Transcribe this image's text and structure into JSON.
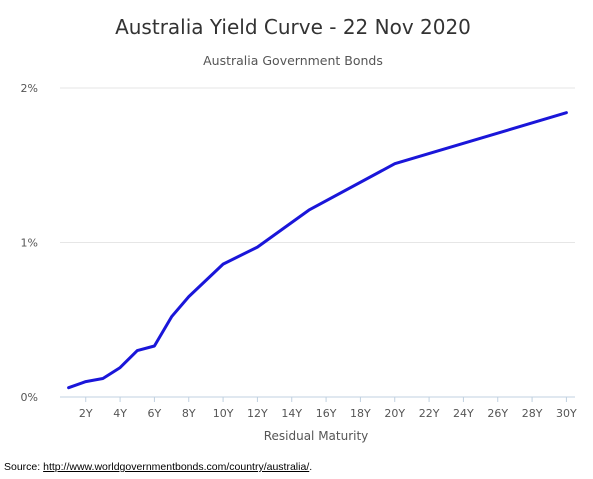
{
  "chart_data": {
    "type": "line",
    "title": "Australia Yield Curve - 22 Nov 2020",
    "subtitle": "Australia Government Bonds",
    "xlabel": "Residual Maturity",
    "ylabel": "",
    "x_tick_labels": [
      "2Y",
      "4Y",
      "6Y",
      "8Y",
      "10Y",
      "12Y",
      "14Y",
      "16Y",
      "18Y",
      "20Y",
      "22Y",
      "24Y",
      "26Y",
      "28Y",
      "30Y"
    ],
    "y_tick_labels": [
      "0%",
      "1%",
      "2%"
    ],
    "y_ticks": [
      0,
      1,
      2
    ],
    "xlim": [
      0.5,
      30.5
    ],
    "ylim": [
      0,
      2
    ],
    "grid": true,
    "series": [
      {
        "color": "#1a16d9",
        "x": [
          1,
          2,
          3,
          4,
          5,
          6,
          7,
          8,
          10,
          12,
          15,
          20,
          30
        ],
        "y": [
          0.06,
          0.1,
          0.12,
          0.19,
          0.3,
          0.33,
          0.52,
          0.65,
          0.86,
          0.97,
          1.21,
          1.51,
          1.84
        ]
      }
    ]
  },
  "source": {
    "label": "Source: ",
    "link_text": "http://www.worldgovernmentbonds.com/country/australia/",
    "suffix": "."
  }
}
